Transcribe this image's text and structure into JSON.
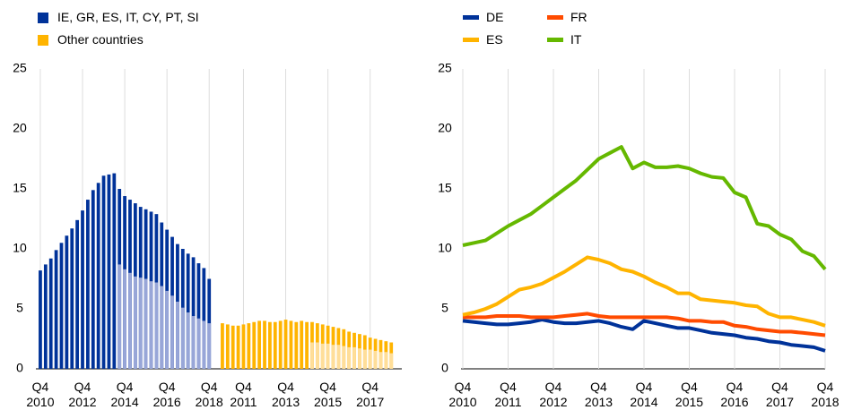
{
  "chart_data": [
    {
      "type": "bar",
      "ylim": [
        0,
        25
      ],
      "yticks": [
        0,
        5,
        10,
        15,
        20,
        25
      ],
      "groups": [
        {
          "categories": [
            "Q4\n2010",
            null,
            null,
            null,
            null,
            null,
            null,
            null,
            "Q4\n2012",
            null,
            null,
            null,
            null,
            null,
            null,
            null,
            "Q4\n2014",
            null,
            null,
            null,
            null,
            null,
            null,
            null,
            "Q4\n2016",
            null,
            null,
            null,
            null,
            null,
            null,
            null,
            "Q4\n2018"
          ],
          "series": [
            {
              "name": "IE, GR, ES, IT, CY, PT, SI",
              "color": "#003299",
              "values": [
                8.2,
                8.7,
                9.2,
                9.9,
                10.5,
                11.1,
                11.7,
                12.4,
                13.2,
                14.1,
                14.9,
                15.5,
                16.1,
                16.2,
                16.3,
                15.0,
                14.4,
                14.1,
                13.8,
                13.5,
                13.3,
                13.1,
                12.9,
                12.2,
                11.6,
                11.0,
                10.4,
                10.0,
                9.6,
                9.3,
                8.8,
                8.4,
                7.5
              ]
            },
            {
              "color": "#98a6d8",
              "values": [
                null,
                null,
                null,
                null,
                null,
                null,
                null,
                null,
                null,
                null,
                null,
                null,
                null,
                null,
                null,
                8.7,
                8.3,
                8.0,
                7.7,
                7.6,
                7.5,
                7.3,
                7.2,
                6.9,
                6.5,
                6.1,
                5.6,
                5.1,
                4.7,
                4.4,
                4.2,
                4.0,
                3.8
              ]
            }
          ]
        },
        {
          "categories": [
            null,
            null,
            null,
            null,
            "Q4\n2011",
            null,
            null,
            null,
            null,
            null,
            null,
            null,
            "Q4\n2013",
            null,
            null,
            null,
            null,
            null,
            null,
            null,
            "Q4\n2015",
            null,
            null,
            null,
            null,
            null,
            null,
            null,
            "Q4\n2017",
            null,
            null,
            null,
            null
          ],
          "series": [
            {
              "name": "Other countries",
              "color": "#ffb400",
              "values": [
                3.8,
                3.7,
                3.6,
                3.6,
                3.7,
                3.8,
                3.9,
                4.0,
                4.0,
                3.9,
                3.9,
                4.0,
                4.1,
                4.0,
                3.9,
                4.0,
                3.9,
                3.9,
                3.8,
                3.7,
                3.6,
                3.5,
                3.4,
                3.3,
                3.1,
                3.0,
                2.9,
                2.8,
                2.6,
                2.5,
                2.4,
                2.3,
                2.2
              ]
            },
            {
              "color": "#ffde99",
              "values": [
                null,
                null,
                null,
                null,
                null,
                null,
                null,
                null,
                null,
                null,
                null,
                null,
                null,
                null,
                null,
                null,
                null,
                2.2,
                2.2,
                2.1,
                2.1,
                2.0,
                2.0,
                1.9,
                1.8,
                1.8,
                1.7,
                1.6,
                1.6,
                1.5,
                1.4,
                1.4,
                1.3
              ]
            }
          ]
        }
      ]
    },
    {
      "type": "line",
      "ylim": [
        0,
        25
      ],
      "yticks": [
        0,
        5,
        10,
        15,
        20,
        25
      ],
      "categories": [
        "Q4\n2010",
        null,
        null,
        null,
        "Q4\n2011",
        null,
        null,
        null,
        "Q4\n2012",
        null,
        null,
        null,
        "Q4\n2013",
        null,
        null,
        null,
        "Q4\n2014",
        null,
        null,
        null,
        "Q4\n2015",
        null,
        null,
        null,
        "Q4\n2016",
        null,
        null,
        null,
        "Q4\n2017",
        null,
        null,
        null,
        "Q4\n2018"
      ],
      "series": [
        {
          "name": "DE",
          "color": "#003299",
          "values": [
            4.0,
            3.9,
            3.8,
            3.7,
            3.7,
            3.8,
            3.9,
            4.1,
            3.9,
            3.8,
            3.8,
            3.9,
            4.0,
            3.8,
            3.5,
            3.3,
            4.0,
            3.8,
            3.6,
            3.4,
            3.4,
            3.2,
            3.0,
            2.9,
            2.8,
            2.6,
            2.5,
            2.3,
            2.2,
            2.0,
            1.9,
            1.8,
            1.5
          ]
        },
        {
          "name": "FR",
          "color": "#ff4b00",
          "values": [
            4.3,
            4.3,
            4.3,
            4.4,
            4.4,
            4.4,
            4.3,
            4.3,
            4.3,
            4.4,
            4.5,
            4.6,
            4.4,
            4.3,
            4.3,
            4.3,
            4.3,
            4.3,
            4.3,
            4.2,
            4.0,
            4.0,
            3.9,
            3.9,
            3.6,
            3.5,
            3.3,
            3.2,
            3.1,
            3.1,
            3.0,
            2.9,
            2.8
          ]
        },
        {
          "name": "ES",
          "color": "#ffb400",
          "values": [
            4.5,
            4.7,
            5.0,
            5.4,
            6.0,
            6.6,
            6.8,
            7.1,
            7.6,
            8.1,
            8.7,
            9.3,
            9.1,
            8.8,
            8.3,
            8.1,
            7.7,
            7.2,
            6.8,
            6.3,
            6.3,
            5.8,
            5.7,
            5.6,
            5.5,
            5.3,
            5.2,
            4.6,
            4.3,
            4.3,
            4.1,
            3.9,
            3.6
          ]
        },
        {
          "name": "IT",
          "color": "#65b800",
          "values": [
            10.3,
            10.5,
            10.7,
            11.3,
            11.9,
            12.4,
            12.9,
            13.6,
            14.3,
            15.0,
            15.7,
            16.6,
            17.5,
            18.0,
            18.5,
            16.7,
            17.2,
            16.8,
            16.8,
            16.9,
            16.7,
            16.3,
            16.0,
            15.9,
            14.7,
            14.3,
            12.1,
            11.9,
            11.2,
            10.8,
            9.8,
            9.4,
            8.3
          ]
        }
      ]
    }
  ]
}
